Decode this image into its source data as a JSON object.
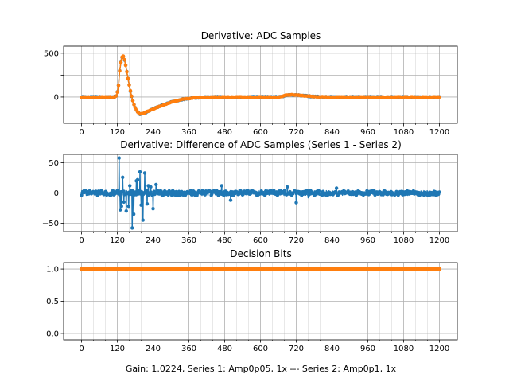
{
  "figure": {
    "footer": "Gain: 1.0224, Series 1: Amp0p05, 1x --- Series 2: Amp0p1, 1x"
  },
  "colors": {
    "blue": "#1f77b4",
    "orange": "#ff7f0e",
    "grid_major": "#b0b0b0",
    "grid_minor": "#d8d8d8"
  },
  "chart_data": [
    {
      "id": "adc_samples",
      "type": "line",
      "title": "Derivative: ADC Samples",
      "xlabel": "",
      "ylabel": "",
      "xlim": [
        -60,
        1260
      ],
      "ylim": [
        -300,
        580
      ],
      "xticks": [
        0,
        120,
        240,
        360,
        480,
        600,
        720,
        840,
        960,
        1080,
        1200
      ],
      "yticks": [
        -250,
        0,
        250,
        500
      ],
      "ytick_labels": [
        "",
        "0",
        "",
        "500"
      ],
      "grid": true,
      "x_range": [
        0,
        1200
      ],
      "series": [
        {
          "name": "Series 1",
          "color": "#1f77b4",
          "breakpoints": [
            [
              0,
              0
            ],
            [
              110,
              0
            ],
            [
              118,
              20
            ],
            [
              124,
              130
            ],
            [
              128,
              300
            ],
            [
              134,
              440
            ],
            [
              138,
              470
            ],
            [
              142,
              460
            ],
            [
              148,
              360
            ],
            [
              155,
              230
            ],
            [
              162,
              100
            ],
            [
              170,
              -20
            ],
            [
              178,
              -110
            ],
            [
              186,
              -160
            ],
            [
              196,
              -195
            ],
            [
              210,
              -185
            ],
            [
              230,
              -150
            ],
            [
              260,
              -110
            ],
            [
              300,
              -60
            ],
            [
              340,
              -25
            ],
            [
              380,
              -8
            ],
            [
              420,
              -2
            ],
            [
              460,
              0
            ],
            [
              660,
              0
            ],
            [
              670,
              5
            ],
            [
              685,
              20
            ],
            [
              705,
              25
            ],
            [
              725,
              22
            ],
            [
              760,
              10
            ],
            [
              800,
              3
            ],
            [
              840,
              0
            ],
            [
              1200,
              0
            ]
          ],
          "noise": 5
        },
        {
          "name": "Series 2",
          "color": "#ff7f0e",
          "breakpoints": [
            [
              0,
              0
            ],
            [
              110,
              0
            ],
            [
              118,
              20
            ],
            [
              124,
              130
            ],
            [
              128,
              300
            ],
            [
              134,
              440
            ],
            [
              138,
              470
            ],
            [
              142,
              460
            ],
            [
              148,
              360
            ],
            [
              155,
              230
            ],
            [
              162,
              100
            ],
            [
              170,
              -20
            ],
            [
              178,
              -110
            ],
            [
              186,
              -160
            ],
            [
              196,
              -195
            ],
            [
              210,
              -185
            ],
            [
              230,
              -150
            ],
            [
              260,
              -110
            ],
            [
              300,
              -60
            ],
            [
              340,
              -25
            ],
            [
              380,
              -8
            ],
            [
              420,
              -2
            ],
            [
              460,
              0
            ],
            [
              660,
              0
            ],
            [
              670,
              5
            ],
            [
              685,
              20
            ],
            [
              705,
              25
            ],
            [
              725,
              22
            ],
            [
              760,
              10
            ],
            [
              800,
              3
            ],
            [
              840,
              0
            ],
            [
              1200,
              0
            ]
          ],
          "noise": 3
        }
      ]
    },
    {
      "id": "difference",
      "type": "line",
      "title": "Derivative: Difference of ADC Samples (Series 1 - Series 2)",
      "xlabel": "",
      "ylabel": "",
      "xlim": [
        -60,
        1260
      ],
      "ylim": [
        -64,
        64
      ],
      "xticks": [
        0,
        120,
        240,
        360,
        480,
        600,
        720,
        840,
        960,
        1080,
        1200
      ],
      "yticks": [
        -50,
        0,
        50
      ],
      "ytick_labels": [
        "−50",
        "0",
        "50"
      ],
      "grid": true,
      "x_range": [
        0,
        1200
      ],
      "series": [
        {
          "name": "Series 1 - Series 2",
          "color": "#1f77b4",
          "noise": 4,
          "spikes": [
            [
              126,
              58
            ],
            [
              130,
              -28
            ],
            [
              134,
              -22
            ],
            [
              138,
              26
            ],
            [
              142,
              -15
            ],
            [
              150,
              -30
            ],
            [
              158,
              -22
            ],
            [
              162,
              12
            ],
            [
              170,
              -58
            ],
            [
              175,
              -35
            ],
            [
              184,
              20
            ],
            [
              188,
              22
            ],
            [
              196,
              35
            ],
            [
              200,
              -20
            ],
            [
              206,
              -45
            ],
            [
              212,
              33
            ],
            [
              220,
              -18
            ],
            [
              224,
              12
            ],
            [
              232,
              10
            ],
            [
              240,
              -26
            ],
            [
              250,
              14
            ],
            [
              470,
              12
            ],
            [
              500,
              -12
            ],
            [
              690,
              10
            ],
            [
              720,
              -16
            ],
            [
              760,
              -8
            ],
            [
              855,
              8
            ]
          ]
        }
      ]
    },
    {
      "id": "decision_bits",
      "type": "line",
      "title": "Decision Bits",
      "xlabel": "Gain: 1.0224, Series 1: Amp0p05, 1x --- Series 2: Amp0p1, 1x",
      "ylabel": "",
      "xlim": [
        -60,
        1260
      ],
      "ylim": [
        -0.1,
        1.1
      ],
      "xticks": [
        0,
        120,
        240,
        360,
        480,
        600,
        720,
        840,
        960,
        1080,
        1200
      ],
      "yticks": [
        0.0,
        0.5,
        1.0
      ],
      "ytick_labels": [
        "0.0",
        "0.5",
        "1.0"
      ],
      "grid": true,
      "x_range": [
        0,
        1200
      ],
      "series": [
        {
          "name": "Series 1",
          "color": "#1f77b4",
          "constant": 1.0
        },
        {
          "name": "Series 2",
          "color": "#ff7f0e",
          "constant": 1.0
        }
      ]
    }
  ]
}
